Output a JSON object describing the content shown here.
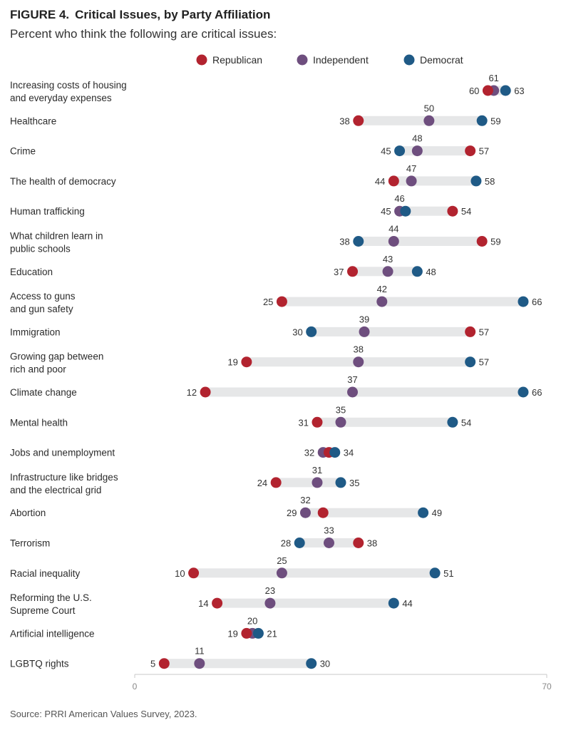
{
  "figure": {
    "number": "FIGURE 4.",
    "title": "Critical Issues, by Party Affiliation",
    "subtitle": "Percent who think the following are critical issues:",
    "source": "Source: PRRI American Values Survey, 2023."
  },
  "colors": {
    "Republican": "#b2232f",
    "Independent": "#6e4e7e",
    "Democrat": "#1f5a86",
    "bar": "#e6e7e8",
    "axis": "#c8c8c8"
  },
  "chart_data": {
    "type": "dot",
    "xlim": [
      0,
      70
    ],
    "xticks": [
      0,
      70
    ],
    "legend_position": "top",
    "series": [
      {
        "name": "Republican"
      },
      {
        "name": "Independent"
      },
      {
        "name": "Democrat"
      }
    ],
    "rows": [
      {
        "label": [
          "Increasing costs of housing",
          "and everyday expenses"
        ],
        "Republican": 60,
        "Independent": 61,
        "Democrat": 63
      },
      {
        "label": [
          "Healthcare"
        ],
        "Republican": 38,
        "Independent": 50,
        "Democrat": 59
      },
      {
        "label": [
          "Crime"
        ],
        "Republican": 57,
        "Independent": 48,
        "Democrat": 45
      },
      {
        "label": [
          "The health of democracy"
        ],
        "Republican": 44,
        "Independent": 47,
        "Democrat": 58
      },
      {
        "label": [
          "Human trafficking"
        ],
        "Republican": 54,
        "Independent": 45,
        "Democrat": 46
      },
      {
        "label": [
          "What children learn in",
          "public schools"
        ],
        "Republican": 59,
        "Independent": 44,
        "Democrat": 38
      },
      {
        "label": [
          "Education"
        ],
        "Republican": 37,
        "Independent": 43,
        "Democrat": 48
      },
      {
        "label": [
          "Access to guns",
          "and gun safety"
        ],
        "Republican": 25,
        "Independent": 42,
        "Democrat": 66
      },
      {
        "label": [
          "Immigration"
        ],
        "Republican": 57,
        "Independent": 39,
        "Democrat": 30
      },
      {
        "label": [
          "Growing gap between",
          "rich and poor"
        ],
        "Republican": 19,
        "Independent": 38,
        "Democrat": 57
      },
      {
        "label": [
          "Climate change"
        ],
        "Republican": 12,
        "Independent": 37,
        "Democrat": 66
      },
      {
        "label": [
          "Mental health"
        ],
        "Republican": 31,
        "Independent": 35,
        "Democrat": 54
      },
      {
        "label": [
          "Jobs and unemployment"
        ],
        "Republican": 33,
        "Independent": 32,
        "Democrat": 34
      },
      {
        "label": [
          "Infrastructure like bridges",
          "and the electrical grid"
        ],
        "Republican": 24,
        "Independent": 31,
        "Democrat": 35
      },
      {
        "label": [
          "Abortion"
        ],
        "Republican": 32,
        "Independent": 29,
        "Democrat": 49
      },
      {
        "label": [
          "Terrorism"
        ],
        "Republican": 38,
        "Independent": 33,
        "Democrat": 28
      },
      {
        "label": [
          "Racial inequality"
        ],
        "Republican": 10,
        "Independent": 25,
        "Democrat": 51
      },
      {
        "label": [
          "Reforming the U.S.",
          "Supreme Court"
        ],
        "Republican": 14,
        "Independent": 23,
        "Democrat": 44
      },
      {
        "label": [
          "Artificial intelligence"
        ],
        "Republican": 19,
        "Independent": 20,
        "Democrat": 21
      },
      {
        "label": [
          "LGBTQ rights"
        ],
        "Republican": 5,
        "Independent": 11,
        "Democrat": 30
      }
    ],
    "value_labels": [
      {
        "left": "60",
        "top": "61",
        "right": "63"
      },
      {
        "left": "38",
        "top": "50",
        "right": "59"
      },
      {
        "left": "45",
        "top": "48",
        "right": "57"
      },
      {
        "left": "44",
        "top": "47",
        "right": "58"
      },
      {
        "left": "45",
        "top": "46",
        "right": "54"
      },
      {
        "left": "38",
        "top": "44",
        "right": "59"
      },
      {
        "left": "37",
        "top": "43",
        "right": "48"
      },
      {
        "left": "25",
        "top": "42",
        "right": "66"
      },
      {
        "left": "30",
        "top": "39",
        "right": "57"
      },
      {
        "left": "19",
        "top": "38",
        "right": "57"
      },
      {
        "left": "12",
        "top": "37",
        "right": "66"
      },
      {
        "left": "31",
        "top": "35",
        "right": "54"
      },
      {
        "left": "32",
        "top": "",
        "right": "34"
      },
      {
        "left": "24",
        "top": "31",
        "right": "35"
      },
      {
        "left": "29",
        "top": "32",
        "right": "49"
      },
      {
        "left": "28",
        "top": "33",
        "right": "38"
      },
      {
        "left": "10",
        "top": "25",
        "right": "51"
      },
      {
        "left": "14",
        "top": "23",
        "right": "44"
      },
      {
        "left": "19",
        "top": "20",
        "right": "21"
      },
      {
        "left": "5",
        "top": "11",
        "right": "30"
      }
    ]
  }
}
